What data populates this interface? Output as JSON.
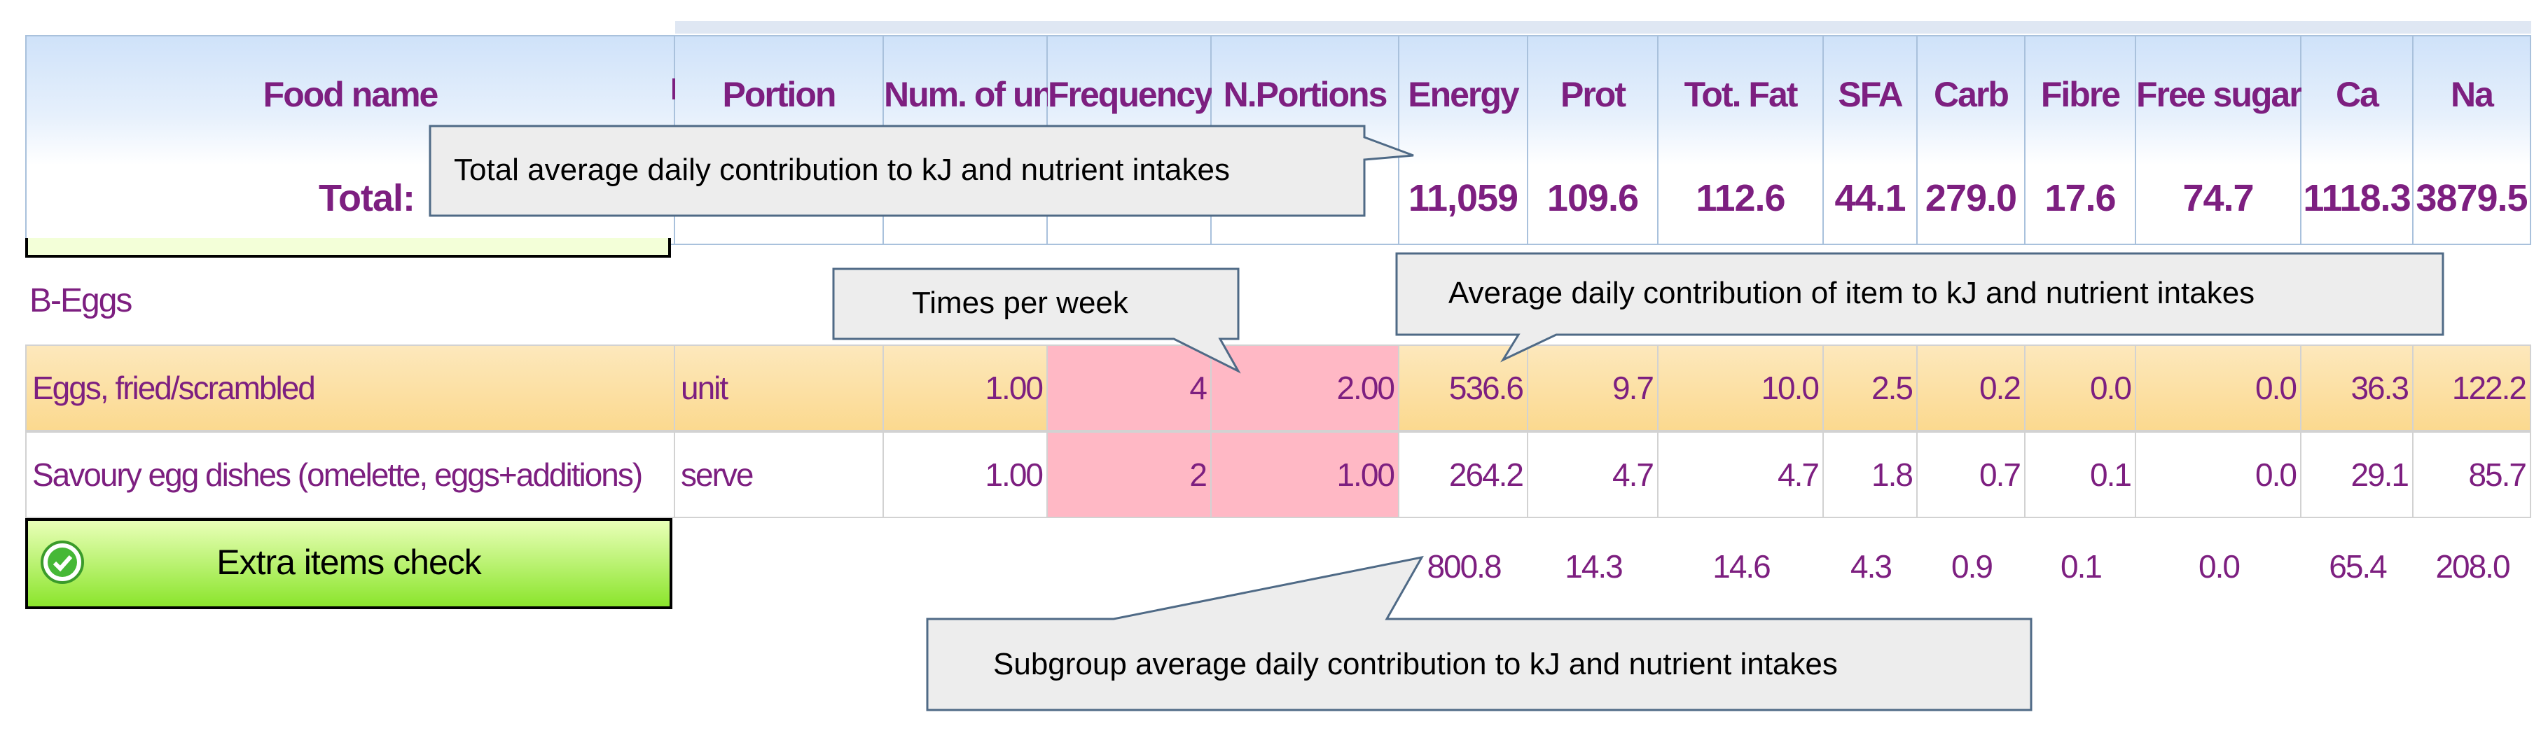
{
  "header": {
    "food_name": "Food name",
    "total_label": "Total:",
    "columns": [
      "Portion",
      "Num. of units",
      "Frequency",
      "N.Portions",
      "Energy",
      "Prot",
      "Tot. Fat",
      "SFA",
      "Carb",
      "Fibre",
      "Free sugar",
      "Ca",
      "Na"
    ],
    "totals": [
      "11,059",
      "109.6",
      "112.6",
      "44.1",
      "279.0",
      "17.6",
      "74.7",
      "1118.3",
      "3879.5"
    ]
  },
  "group": {
    "name": "B-Eggs",
    "rows": [
      {
        "food": "Eggs, fried/scrambled",
        "portion": "unit",
        "units": "1.00",
        "frequency": "4",
        "nportions": "2.00",
        "values": [
          "536.6",
          "9.7",
          "10.0",
          "2.5",
          "0.2",
          "0.0",
          "0.0",
          "36.3",
          "122.2"
        ]
      },
      {
        "food": "Savoury egg dishes (omelette, eggs+additions)",
        "portion": "serve",
        "units": "1.00",
        "frequency": "2",
        "nportions": "1.00",
        "values": [
          "264.2",
          "4.7",
          "4.7",
          "1.8",
          "0.7",
          "0.1",
          "0.0",
          "29.1",
          "85.7"
        ]
      }
    ],
    "subtotals": [
      "800.8",
      "14.3",
      "14.6",
      "4.3",
      "0.9",
      "0.1",
      "0.0",
      "65.4",
      "208.0"
    ]
  },
  "extra_button": {
    "label": "Extra items check",
    "icon": "check-circle-icon",
    "colors": {
      "top": "#e9ffb8",
      "bottom": "#8be52c"
    }
  },
  "callouts": {
    "total": "Total average daily contribution to kJ and nutrient intakes",
    "times": "Times per week",
    "item": "Average daily contribution of item to kJ and nutrient intakes",
    "subgroup": "Subgroup average daily contribution to kJ and nutrient intakes"
  },
  "colors": {
    "text": "#7d1f80",
    "header_border": "#a9c1dc",
    "row_highlight": "#fbd98f",
    "frequency_cell": "#ffb8c5"
  }
}
